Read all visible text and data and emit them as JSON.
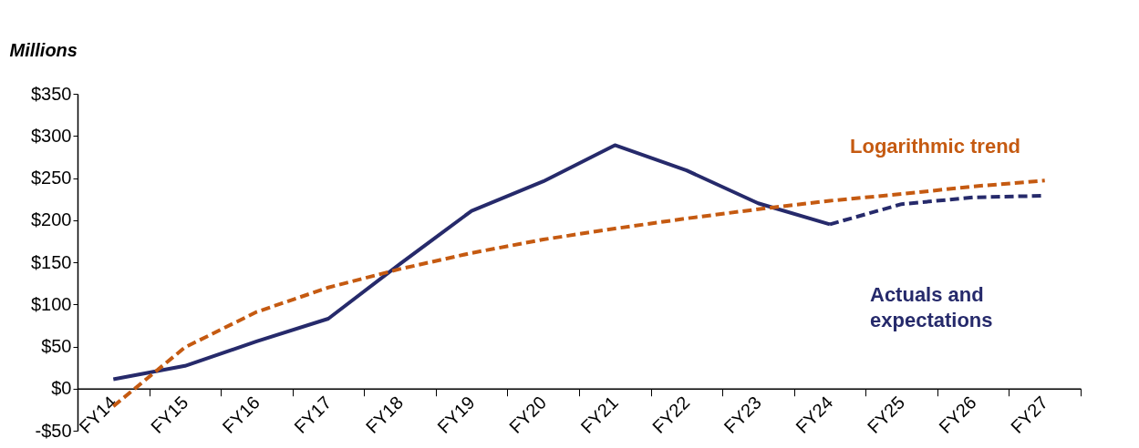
{
  "chart_data": {
    "type": "line",
    "ylabel": "Millions",
    "categories": [
      "FY14",
      "FY15",
      "FY16",
      "FY17",
      "FY18",
      "FY19",
      "FY20",
      "FY21",
      "FY22",
      "FY23",
      "FY24",
      "FY25",
      "FY26",
      "FY27"
    ],
    "series": [
      {
        "name": "Actuals and expectations",
        "color": "#262a6b",
        "line_style": "solid",
        "values": [
          11,
          27,
          56,
          83,
          148,
          211,
          246,
          289,
          259,
          220,
          195,
          null,
          null,
          null
        ]
      },
      {
        "color": "#262a6b",
        "line_style": "dashed",
        "values": [
          null,
          null,
          null,
          null,
          null,
          null,
          null,
          null,
          null,
          null,
          195,
          219,
          227,
          229
        ]
      },
      {
        "name": "Logarithmic trend",
        "color": "#c55a11",
        "line_style": "dashed",
        "values": [
          -21,
          49,
          91,
          120,
          142,
          161,
          177,
          190,
          202,
          213,
          223,
          231,
          240,
          247
        ]
      }
    ],
    "ylim": [
      -50,
      350
    ],
    "yticks": [
      {
        "value": -50,
        "label": "-$50"
      },
      {
        "value": 0,
        "label": "$0"
      },
      {
        "value": 50,
        "label": "$50"
      },
      {
        "value": 100,
        "label": "$100"
      },
      {
        "value": 150,
        "label": "$150"
      },
      {
        "value": 200,
        "label": "$200"
      },
      {
        "value": 250,
        "label": "$250"
      },
      {
        "value": 300,
        "label": "$300"
      },
      {
        "value": 350,
        "label": "$350"
      }
    ],
    "grid": false,
    "marker": "none"
  }
}
